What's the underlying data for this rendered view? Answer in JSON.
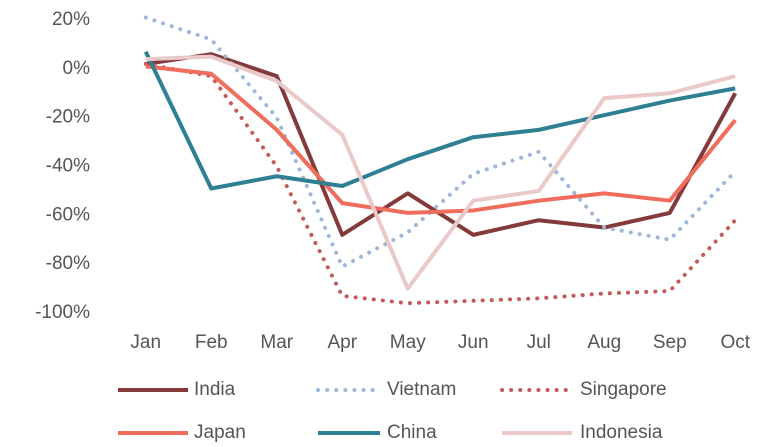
{
  "chart_data": {
    "type": "line",
    "categories": [
      "Jan",
      "Feb",
      "Mar",
      "Apr",
      "May",
      "Jun",
      "Jul",
      "Aug",
      "Sep",
      "Oct"
    ],
    "series": [
      {
        "name": "India",
        "color": "#843a3a",
        "style": "solid",
        "values": [
          2,
          6,
          -3,
          -68,
          -51,
          -68,
          -62,
          -65,
          -59,
          -10
        ]
      },
      {
        "name": "Vietnam",
        "color": "#9fb7d8",
        "style": "dotted",
        "values": [
          21,
          12,
          -20,
          -81,
          -67,
          -43,
          -34,
          -65,
          -70,
          -42
        ]
      },
      {
        "name": "Singapore",
        "color": "#c45a5a",
        "style": "dotted",
        "values": [
          2,
          -3,
          -40,
          -93,
          -96,
          -95,
          -94,
          -92,
          -91,
          -62
        ]
      },
      {
        "name": "Japan",
        "color": "#f06c5c",
        "style": "solid",
        "values": [
          1,
          -2,
          -25,
          -55,
          -59,
          -58,
          -54,
          -51,
          -54,
          -21
        ]
      },
      {
        "name": "China",
        "color": "#2f8093",
        "style": "solid",
        "values": [
          7,
          -49,
          -44,
          -48,
          -37,
          -28,
          -25,
          -19,
          -13,
          -8
        ]
      },
      {
        "name": "Indonesia",
        "color": "#e9c9c9",
        "style": "solid",
        "values": [
          4,
          5,
          -5,
          -27,
          -90,
          -54,
          -50,
          -12,
          -10,
          -3
        ]
      }
    ],
    "ylim": [
      -100,
      20
    ],
    "yticks": [
      {
        "value": 20,
        "label": "20%"
      },
      {
        "value": 0,
        "label": "0%"
      },
      {
        "value": -20,
        "label": "-20%"
      },
      {
        "value": -40,
        "label": "-40%"
      },
      {
        "value": -60,
        "label": "-60%"
      },
      {
        "value": -80,
        "label": "-80%"
      },
      {
        "value": -100,
        "label": "-100%"
      }
    ],
    "grid": false
  }
}
